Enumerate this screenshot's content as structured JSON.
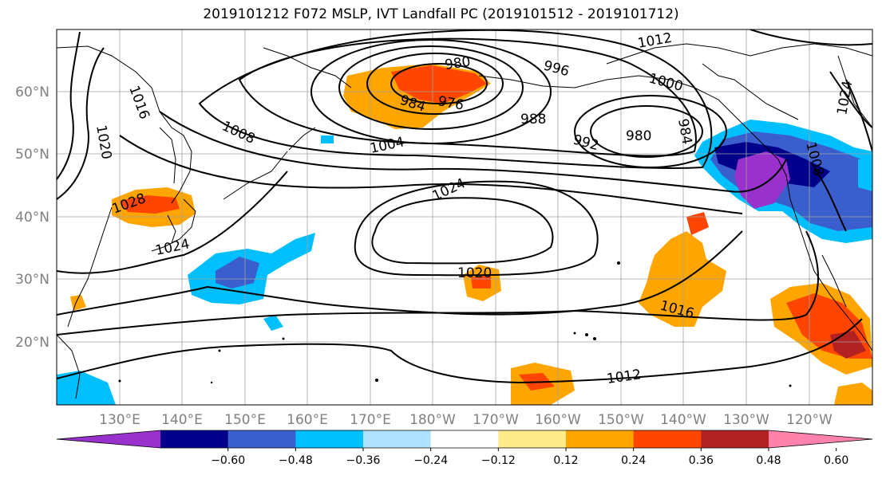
{
  "title": "2019101212 F072 MSLP, IVT Landfall PC (2019101512 - 2019101712)",
  "lat_labels": [
    "60°N",
    "50°N",
    "40°N",
    "30°N",
    "20°N"
  ],
  "lon_labels": [
    "130°E",
    "140°E",
    "150°E",
    "160°E",
    "170°E",
    "180°W",
    "170°W",
    "160°W",
    "150°W",
    "140°W",
    "130°W",
    "120°W"
  ],
  "contour_labels": [
    "980",
    "984",
    "976",
    "996",
    "1012",
    "1000",
    "988",
    "1024",
    "1016",
    "1020",
    "1008",
    "1004",
    "992",
    "980",
    "984",
    "1028",
    "1024",
    "1024",
    "1020",
    "1016",
    "1012",
    "1008"
  ],
  "colorbar": {
    "ticks": [
      "−0.60",
      "−0.48",
      "−0.36",
      "−0.24",
      "−0.12",
      "0.12",
      "0.24",
      "0.36",
      "0.48",
      "0.60"
    ],
    "colors": [
      "#9932cc",
      "#00008b",
      "#3a5fcd",
      "#00bfff",
      "#b0e2ff",
      "#ffffff",
      "#ffeb8a",
      "#ffa500",
      "#ff4500",
      "#b22222",
      "#ff82ab"
    ]
  }
}
